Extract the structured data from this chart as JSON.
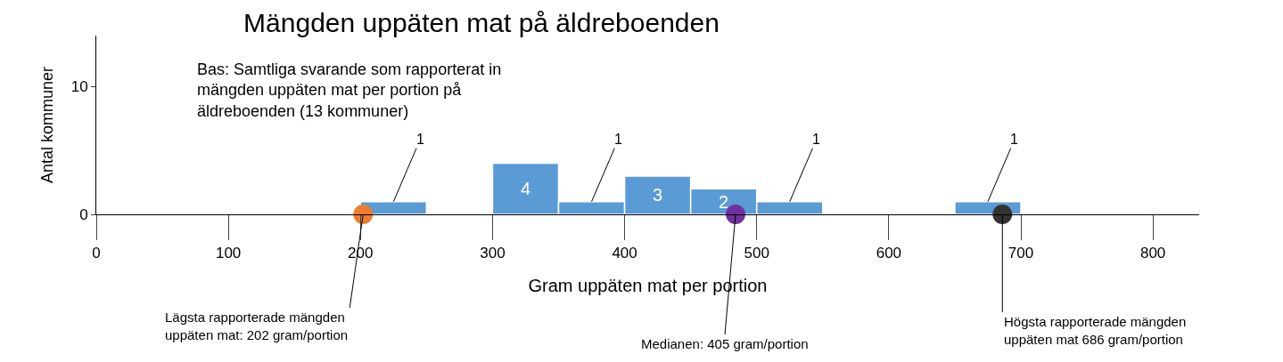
{
  "chart_data": {
    "type": "histogram",
    "title": "Mängden uppäten mat på äldreboenden",
    "xlabel": "Gram uppäten mat per portion",
    "ylabel": "Antal kommuner",
    "bins": [
      200,
      250,
      300,
      350,
      400,
      450,
      500,
      550,
      600,
      650,
      700
    ],
    "values": [
      1,
      0,
      4,
      1,
      3,
      2,
      1,
      0,
      0,
      1
    ],
    "value_labels": [
      "1",
      null,
      "4",
      "1",
      "3",
      "2",
      "1",
      null,
      null,
      "1"
    ],
    "color": "#5b9bd5",
    "series": [
      {
        "type": "scatter",
        "x": [
          202,
          484,
          686
        ],
        "values": [
          0,
          0,
          0
        ],
        "colors": [
          "#ed7d31",
          "#7030a0",
          "#333333"
        ]
      }
    ],
    "xlim": [
      0,
      835
    ],
    "ylim": [
      0,
      14
    ],
    "xticks": [
      0,
      100,
      200,
      300,
      400,
      500,
      600,
      700,
      800
    ],
    "yticks": [
      0,
      10
    ],
    "annotations": [
      "Bas: Samtliga svarande som rapporterat in\nmängden uppäten mat per portion på\näldreboenden (13 kommuner)",
      {
        "text": "Lägsta rapporterade mängden\nuppäten mat: 202 gram/portion",
        "x": 202,
        "y": 0
      },
      {
        "text": "Medianen: 405 gram/portion",
        "x": 484,
        "y": 0
      },
      {
        "text": "Högsta rapporterade mängden\nuppäten mat 686 gram/portion",
        "x": 686,
        "y": 0
      }
    ]
  }
}
